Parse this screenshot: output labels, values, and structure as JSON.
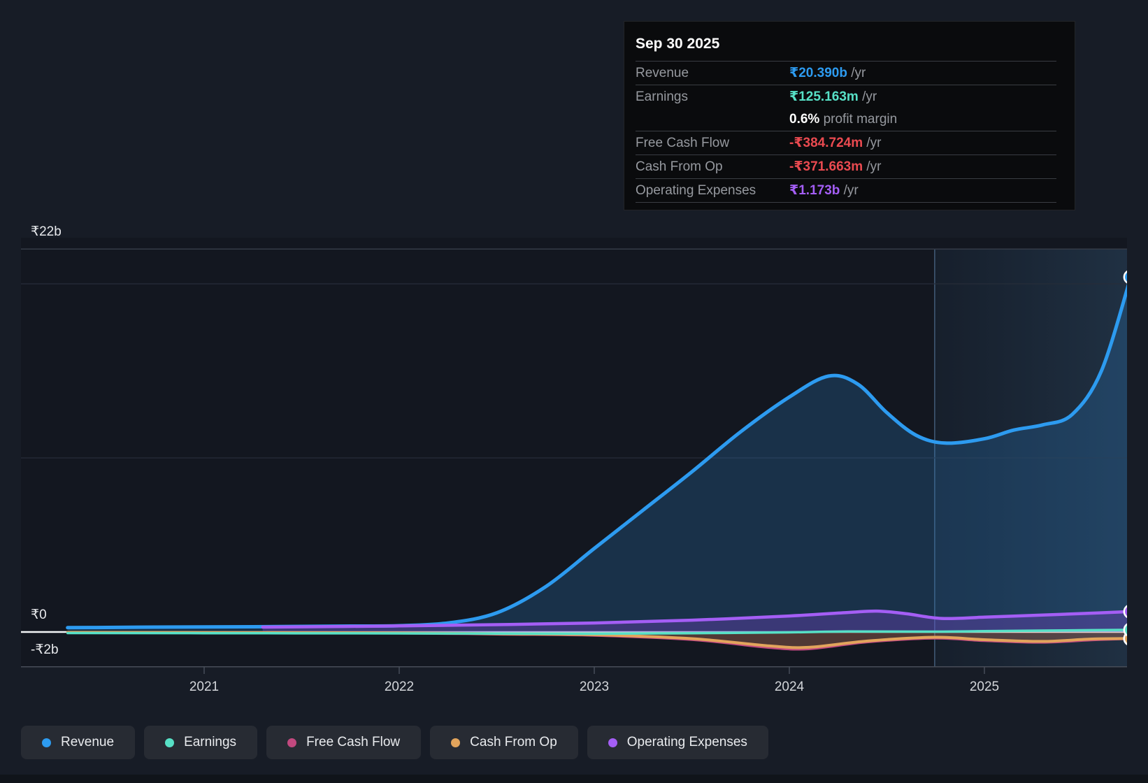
{
  "tooltip": {
    "date": "Sep 30 2025",
    "rows": [
      {
        "label": "Revenue",
        "value": "₹20.390b",
        "suffix": " /yr",
        "color": "#2d9bf0"
      },
      {
        "label": "Earnings",
        "value": "₹125.163m",
        "suffix": " /yr",
        "color": "#57e0c6",
        "sub": {
          "value": "0.6%",
          "text": " profit margin"
        }
      },
      {
        "label": "Free Cash Flow",
        "value": "-₹384.724m",
        "suffix": " /yr",
        "color": "#ea4a50"
      },
      {
        "label": "Cash From Op",
        "value": "-₹371.663m",
        "suffix": " /yr",
        "color": "#ea4a50"
      },
      {
        "label": "Operating Expenses",
        "value": "₹1.173b",
        "suffix": " /yr",
        "color": "#a45ef5"
      }
    ]
  },
  "legend": [
    {
      "label": "Revenue",
      "color": "#2d9bf0"
    },
    {
      "label": "Earnings",
      "color": "#57e0c6"
    },
    {
      "label": "Free Cash Flow",
      "color": "#c2497f"
    },
    {
      "label": "Cash From Op",
      "color": "#e2a45c"
    },
    {
      "label": "Operating Expenses",
      "color": "#a45ef5"
    }
  ],
  "chart_data": {
    "type": "line",
    "title": "",
    "xlabel": "",
    "ylabel": "₹ (billions)",
    "x_ticks": [
      2021,
      2022,
      2023,
      2024,
      2025
    ],
    "y_axis_labels": [
      {
        "text": "₹22b",
        "value": 22
      },
      {
        "text": "₹0",
        "value": 0
      },
      {
        "text": "-₹2b",
        "value": -2
      }
    ],
    "ylim": [
      -2,
      22
    ],
    "unlabeled_gridlines": [
      20,
      10
    ],
    "grid": true,
    "legend_position": "bottom",
    "highlight_region": {
      "from": 2024.745,
      "to": 2025.75
    },
    "last_point_date": "Sep 30 2025",
    "series": [
      {
        "name": "Free Cash Flow",
        "color": "#c2497f",
        "width": 3.5,
        "fill": "rgba(195,75,130,0.15)",
        "points": [
          [
            2020.3,
            -0.04
          ],
          [
            2021,
            -0.05
          ],
          [
            2022,
            -0.07
          ],
          [
            2022.5,
            -0.13
          ],
          [
            2023,
            -0.2
          ],
          [
            2023.5,
            -0.44
          ],
          [
            2023.9,
            -0.9
          ],
          [
            2024.1,
            -0.97
          ],
          [
            2024.4,
            -0.58
          ],
          [
            2024.745,
            -0.36
          ],
          [
            2025,
            -0.5
          ],
          [
            2025.3,
            -0.6
          ],
          [
            2025.55,
            -0.46
          ],
          [
            2025.75,
            -0.3847
          ]
        ]
      },
      {
        "name": "Cash From Op",
        "color": "#e2a45c",
        "width": 4,
        "fill": "rgba(222,160,85,0.20)",
        "points": [
          [
            2020.3,
            -0.02
          ],
          [
            2021,
            -0.03
          ],
          [
            2022,
            -0.05
          ],
          [
            2022.5,
            -0.1
          ],
          [
            2023,
            -0.16
          ],
          [
            2023.5,
            -0.38
          ],
          [
            2023.9,
            -0.8
          ],
          [
            2024.1,
            -0.88
          ],
          [
            2024.4,
            -0.52
          ],
          [
            2024.745,
            -0.3
          ],
          [
            2025,
            -0.44
          ],
          [
            2025.3,
            -0.54
          ],
          [
            2025.55,
            -0.4
          ],
          [
            2025.75,
            -0.3717
          ]
        ]
      },
      {
        "name": "Earnings",
        "color": "#57e0c6",
        "width": 3.5,
        "fill": "rgba(90,220,195,0.12)",
        "points": [
          [
            2020.3,
            -0.06
          ],
          [
            2021,
            -0.07
          ],
          [
            2022,
            -0.08
          ],
          [
            2022.5,
            -0.09
          ],
          [
            2023,
            -0.1
          ],
          [
            2023.5,
            -0.07
          ],
          [
            2024,
            -0.02
          ],
          [
            2024.3,
            0.03
          ],
          [
            2024.745,
            0.02
          ],
          [
            2025,
            0.05
          ],
          [
            2025.3,
            0.08
          ],
          [
            2025.75,
            0.1252
          ]
        ]
      },
      {
        "name": "Revenue",
        "color": "#2d9bf0",
        "width": 5,
        "fill": "rgba(42,125,195,0.26)",
        "points": [
          [
            2020.3,
            0.25
          ],
          [
            2020.5,
            0.26
          ],
          [
            2020.75,
            0.28
          ],
          [
            2021,
            0.29
          ],
          [
            2021.25,
            0.3
          ],
          [
            2021.5,
            0.32
          ],
          [
            2021.75,
            0.34
          ],
          [
            2022,
            0.36
          ],
          [
            2022.25,
            0.52
          ],
          [
            2022.5,
            1.1
          ],
          [
            2022.75,
            2.6
          ],
          [
            2023,
            4.8
          ],
          [
            2023.25,
            7.0
          ],
          [
            2023.5,
            9.2
          ],
          [
            2023.75,
            11.5
          ],
          [
            2024,
            13.5
          ],
          [
            2024.2,
            14.7
          ],
          [
            2024.35,
            14.25
          ],
          [
            2024.5,
            12.6
          ],
          [
            2024.65,
            11.3
          ],
          [
            2024.8,
            10.85
          ],
          [
            2025,
            11.1
          ],
          [
            2025.15,
            11.6
          ],
          [
            2025.3,
            11.9
          ],
          [
            2025.45,
            12.5
          ],
          [
            2025.6,
            15.0
          ],
          [
            2025.75,
            20.39
          ]
        ]
      },
      {
        "name": "Operating Expenses",
        "color": "#a45ef5",
        "width": 4.5,
        "fill": "rgba(130,70,215,0.32)",
        "points": [
          [
            2021.3,
            0.28
          ],
          [
            2021.75,
            0.32
          ],
          [
            2022,
            0.35
          ],
          [
            2022.5,
            0.42
          ],
          [
            2023,
            0.52
          ],
          [
            2023.5,
            0.68
          ],
          [
            2024,
            0.92
          ],
          [
            2024.3,
            1.12
          ],
          [
            2024.45,
            1.2
          ],
          [
            2024.6,
            1.05
          ],
          [
            2024.78,
            0.78
          ],
          [
            2025,
            0.85
          ],
          [
            2025.25,
            0.95
          ],
          [
            2025.5,
            1.06
          ],
          [
            2025.75,
            1.173
          ]
        ]
      }
    ]
  },
  "colors": {
    "background": "#171c26",
    "plot_background": "#131720",
    "grid_major": "#343b47",
    "grid_minor": "#272d39",
    "zero_line": "#f4f6f8",
    "axis_line": "#474d58",
    "divider": "rgba(115,165,210,0.45)",
    "band_from": "rgba(70,140,200,0.07)",
    "band_to": "rgba(95,175,240,0.17)"
  }
}
